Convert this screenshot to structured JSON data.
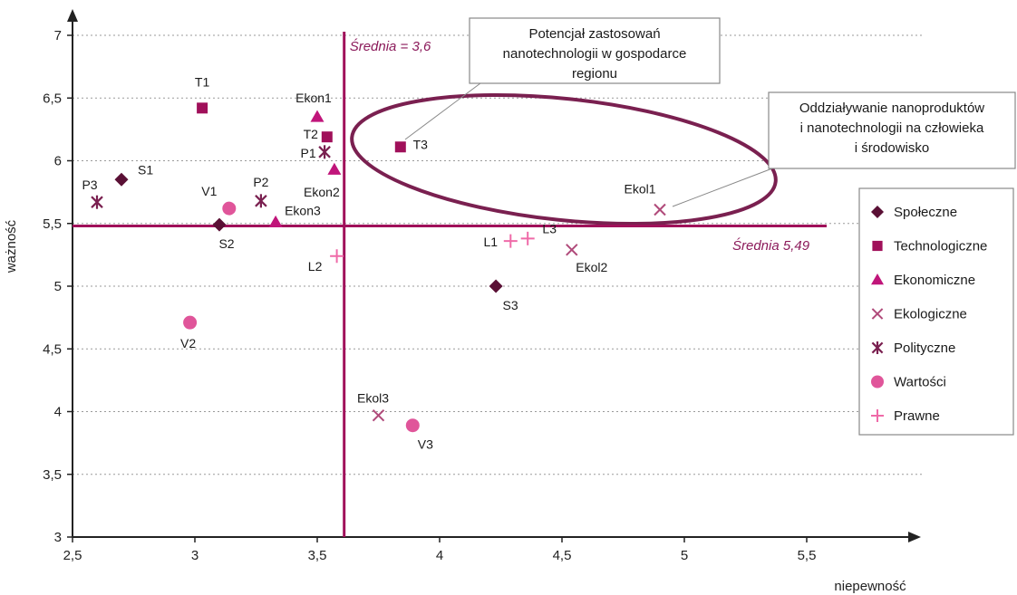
{
  "chart_data": {
    "type": "scatter",
    "xlabel": "niepewność",
    "ylabel": "ważność",
    "xlim": [
      2.5,
      6.0
    ],
    "ylim": [
      3,
      7.2
    ],
    "x_ticks": [
      "2,5",
      "3",
      "3,5",
      "4",
      "4,5",
      "5",
      "5,5"
    ],
    "y_ticks": [
      "3",
      "3,5",
      "4",
      "4,5",
      "5",
      "5,5",
      "6",
      "6,5",
      "7"
    ],
    "grid": "horizontal dotted",
    "legend_position": "right",
    "mean_x": {
      "value": 3.61,
      "label": "Średnia = 3,6"
    },
    "mean_y": {
      "value": 5.48,
      "label": "Średnia 5,49"
    },
    "callouts": [
      {
        "lines": [
          "Potencjał zastosowań",
          "nanotechnologii w gospodarce",
          "regionu"
        ]
      },
      {
        "lines": [
          "Oddziaływanie nanoproduktów",
          "i nanotechnologii na człowieka",
          "i środowisko"
        ]
      }
    ],
    "series": [
      {
        "name": "Społeczne",
        "marker": "diamond",
        "color": "#5a1035",
        "points": [
          {
            "label": "S1",
            "x": 2.7,
            "y": 5.85
          },
          {
            "label": "S2",
            "x": 3.1,
            "y": 5.49
          },
          {
            "label": "S3",
            "x": 4.23,
            "y": 5.0
          }
        ]
      },
      {
        "name": "Technologiczne",
        "marker": "square",
        "color": "#a0105a",
        "points": [
          {
            "label": "T1",
            "x": 3.03,
            "y": 6.42
          },
          {
            "label": "T2",
            "x": 3.54,
            "y": 6.19
          },
          {
            "label": "T3",
            "x": 3.84,
            "y": 6.11
          }
        ]
      },
      {
        "name": "Ekonomiczne",
        "marker": "triangle",
        "color": "#c0157a",
        "points": [
          {
            "label": "Ekon1",
            "x": 3.5,
            "y": 6.35
          },
          {
            "label": "Ekon2",
            "x": 3.57,
            "y": 5.93
          },
          {
            "label": "Ekon3",
            "x": 3.33,
            "y": 5.51
          }
        ]
      },
      {
        "name": "Ekologiczne",
        "marker": "x",
        "color": "#b04a7a",
        "points": [
          {
            "label": "Ekol1",
            "x": 4.9,
            "y": 5.61
          },
          {
            "label": "Ekol2",
            "x": 4.54,
            "y": 5.29
          },
          {
            "label": "Ekol3",
            "x": 3.75,
            "y": 3.97
          }
        ]
      },
      {
        "name": "Polityczne",
        "marker": "star",
        "color": "#7a2050",
        "points": [
          {
            "label": "P1",
            "x": 3.53,
            "y": 6.07
          },
          {
            "label": "P2",
            "x": 3.27,
            "y": 5.68
          },
          {
            "label": "P3",
            "x": 2.6,
            "y": 5.67
          }
        ]
      },
      {
        "name": "Wartości",
        "marker": "circle",
        "color": "#e0559a",
        "points": [
          {
            "label": "V1",
            "x": 3.14,
            "y": 5.62
          },
          {
            "label": "V2",
            "x": 2.98,
            "y": 4.71
          },
          {
            "label": "V3",
            "x": 3.89,
            "y": 3.89
          }
        ]
      },
      {
        "name": "Prawne",
        "marker": "plus",
        "color": "#ef6aa8",
        "points": [
          {
            "label": "L1",
            "x": 4.29,
            "y": 5.36
          },
          {
            "label": "L2",
            "x": 3.58,
            "y": 5.24
          },
          {
            "label": "L3",
            "x": 4.36,
            "y": 5.38
          }
        ]
      }
    ]
  }
}
